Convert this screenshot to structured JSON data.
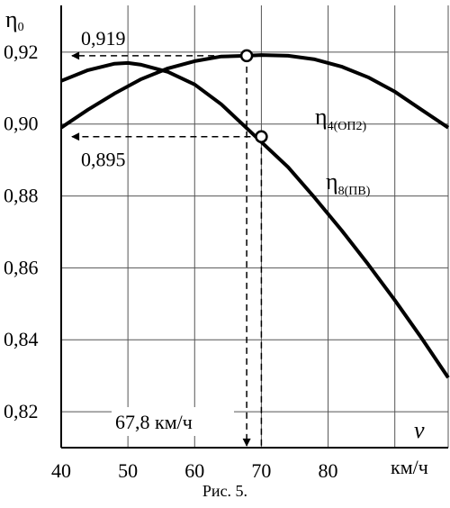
{
  "chart_data": {
    "type": "line",
    "ylabel": "η",
    "ylabel_sub": "0",
    "xlabel": "v",
    "xunit": "км/ч",
    "xlim": [
      40,
      98
    ],
    "ylim": [
      0.81,
      0.933
    ],
    "x_ticks": [
      40,
      50,
      60,
      70,
      80
    ],
    "x_tick_labels": [
      "40",
      "50",
      "60",
      "70",
      "80"
    ],
    "y_ticks": [
      0.82,
      0.84,
      0.86,
      0.88,
      0.9,
      0.92
    ],
    "y_tick_labels": [
      "0,82",
      "0,84",
      "0,86",
      "0,88",
      "0,90",
      "0,92"
    ],
    "grid_x": [
      40,
      50,
      60,
      70,
      80,
      90,
      98
    ],
    "grid_y": [
      0.82,
      0.84,
      0.86,
      0.88,
      0.9,
      0.92
    ],
    "grid": true,
    "series": [
      {
        "name": "η",
        "name_sub": "4(ОП2)",
        "color": "#000000",
        "x": [
          40,
          44,
          48,
          52,
          56,
          60,
          64,
          67.8,
          70,
          74,
          78,
          82,
          86,
          90,
          94,
          98
        ],
        "y": [
          0.899,
          0.904,
          0.9085,
          0.9125,
          0.9155,
          0.9175,
          0.9188,
          0.919,
          0.9192,
          0.919,
          0.918,
          0.916,
          0.913,
          0.909,
          0.904,
          0.899
        ]
      },
      {
        "name": "η",
        "name_sub": "8(ПВ)",
        "color": "#000000",
        "x": [
          40,
          44,
          48,
          50,
          52,
          56,
          60,
          64,
          68,
          70,
          74,
          78,
          82,
          86,
          90,
          94,
          98
        ],
        "y": [
          0.912,
          0.915,
          0.9168,
          0.917,
          0.9165,
          0.9145,
          0.911,
          0.9055,
          0.8985,
          0.895,
          0.888,
          0.8795,
          0.8705,
          0.861,
          0.851,
          0.8405,
          0.8295
        ]
      }
    ],
    "annotations": [
      {
        "label": "0,919",
        "x": 67.8,
        "y": 0.919
      },
      {
        "label": "0,895",
        "x": 70,
        "y": 0.8965
      },
      {
        "label": "67,8 км/ч",
        "x": 67.8
      }
    ]
  },
  "caption": "Рис. 5."
}
